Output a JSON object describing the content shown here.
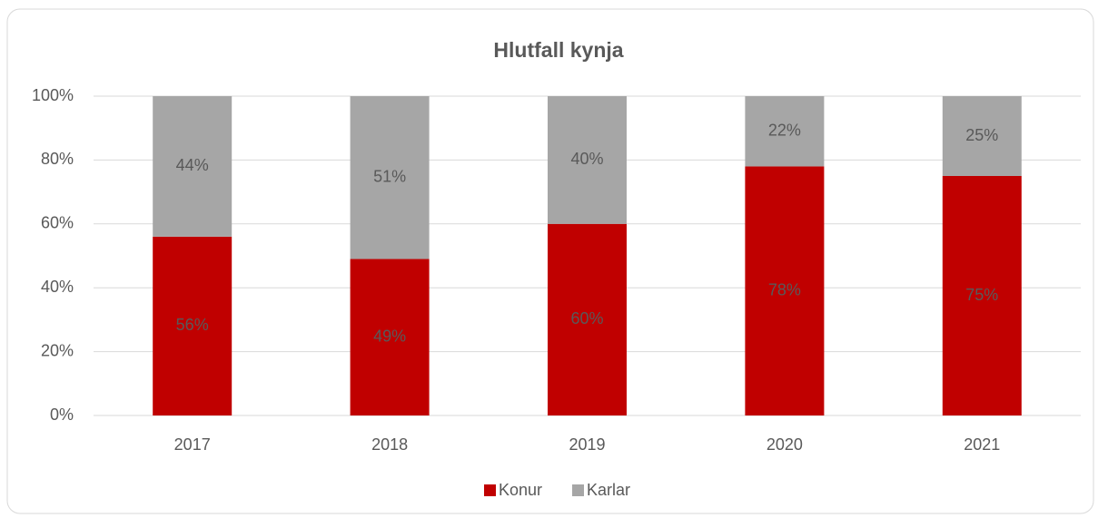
{
  "chart_data": {
    "type": "stacked_bar",
    "title": "Hlutfall kynja",
    "categories": [
      "2017",
      "2018",
      "2019",
      "2020",
      "2021"
    ],
    "series": [
      {
        "name": "Konur",
        "color": "#c00000",
        "values": [
          56,
          49,
          60,
          78,
          75
        ],
        "value_labels": [
          "56%",
          "49%",
          "60%",
          "78%",
          "75%"
        ]
      },
      {
        "name": "Karlar",
        "color": "#a6a6a6",
        "values": [
          44,
          51,
          40,
          22,
          25
        ],
        "value_labels": [
          "44%",
          "51%",
          "40%",
          "22%",
          "25%"
        ]
      }
    ],
    "ylim": [
      0,
      100
    ],
    "yticks": [
      {
        "value": 0,
        "label": "0%"
      },
      {
        "value": 20,
        "label": "20%"
      },
      {
        "value": 40,
        "label": "40%"
      },
      {
        "value": 60,
        "label": "60%"
      },
      {
        "value": 80,
        "label": "80%"
      },
      {
        "value": 100,
        "label": "100%"
      }
    ],
    "grid": true,
    "legend": "bottom"
  }
}
